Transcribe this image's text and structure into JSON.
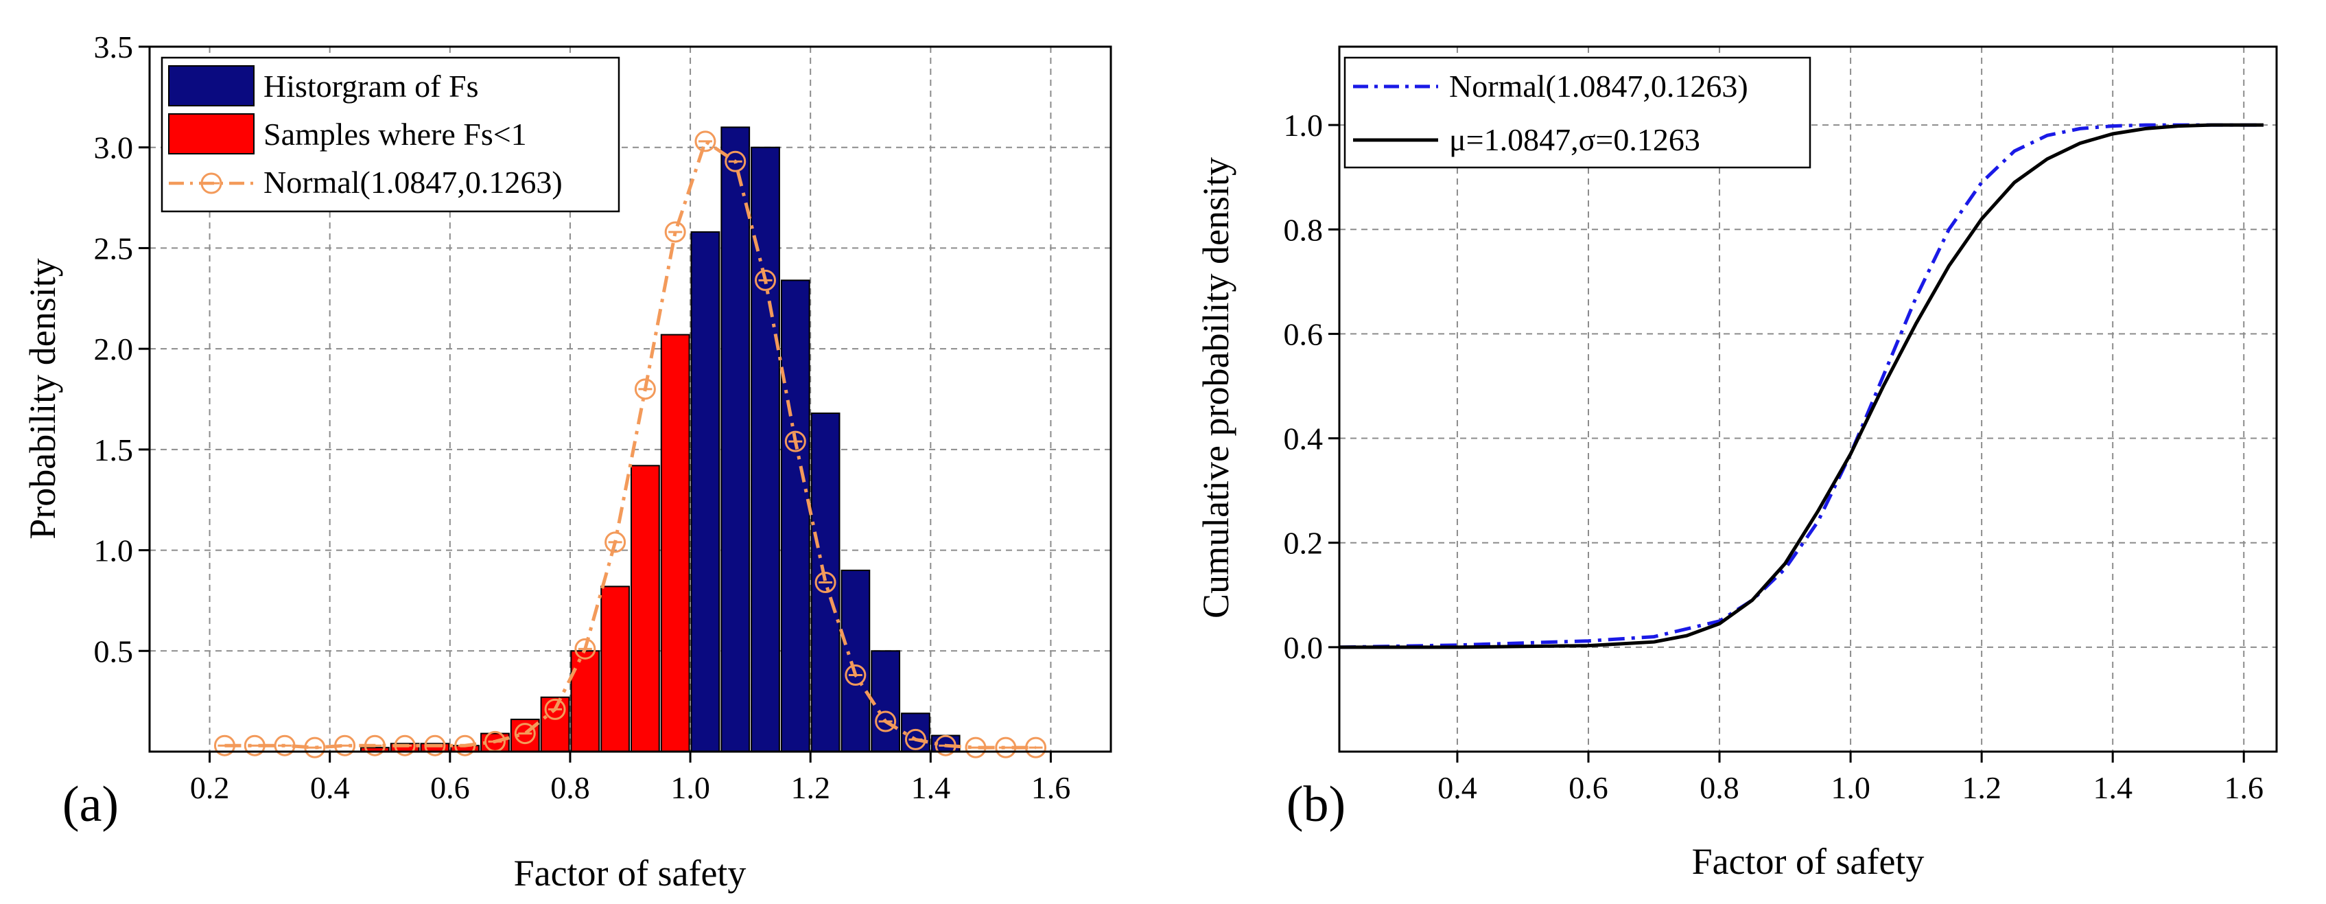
{
  "colors": {
    "hist": "#0a0a80",
    "fail": "#ff0000",
    "normal_a": "#f39a5a",
    "normal_b": "#1a1ae6",
    "mu_sigma": "#000000",
    "grid": "#8c8c8c"
  },
  "chart_data": [
    {
      "type": "bar",
      "panel_label": "(a)",
      "xlabel": "Factor of safety",
      "ylabel": "Probability density",
      "xlim": [
        0.1,
        1.7
      ],
      "ylim": [
        0,
        3.5
      ],
      "xticks": [
        "0.2",
        "0.4",
        "0.6",
        "0.8",
        "1.0",
        "1.2",
        "1.4",
        "1.6"
      ],
      "yticks": [
        "0.5",
        "1.0",
        "1.5",
        "2.0",
        "2.5",
        "3.0",
        "3.5"
      ],
      "bin_width": 0.05,
      "legend_position": "top-left",
      "series": [
        {
          "name": "Historgram of Fs",
          "type": "bar",
          "x": [
            1.025,
            1.075,
            1.125,
            1.175,
            1.225,
            1.275,
            1.325,
            1.375,
            1.425
          ],
          "values": [
            2.58,
            3.1,
            3.0,
            2.34,
            1.68,
            0.9,
            0.5,
            0.19,
            0.08
          ]
        },
        {
          "name": "Samples where Fs<1",
          "type": "bar",
          "x": [
            0.475,
            0.525,
            0.575,
            0.625,
            0.675,
            0.725,
            0.775,
            0.825,
            0.875,
            0.925,
            0.975
          ],
          "values": [
            0.02,
            0.04,
            0.04,
            0.03,
            0.09,
            0.16,
            0.27,
            0.5,
            0.82,
            1.42,
            2.07
          ]
        },
        {
          "name": "Normal(1.0847,0.1263)",
          "type": "line",
          "x": [
            0.225,
            0.275,
            0.325,
            0.375,
            0.425,
            0.475,
            0.525,
            0.575,
            0.625,
            0.675,
            0.725,
            0.775,
            0.825,
            0.875,
            0.925,
            0.975,
            1.025,
            1.075,
            1.125,
            1.175,
            1.225,
            1.275,
            1.325,
            1.375,
            1.425,
            1.475,
            1.525,
            1.575
          ],
          "values": [
            0.03,
            0.03,
            0.03,
            0.02,
            0.03,
            0.03,
            0.03,
            0.03,
            0.03,
            0.05,
            0.09,
            0.21,
            0.51,
            1.04,
            1.8,
            2.58,
            3.03,
            2.93,
            2.34,
            1.54,
            0.84,
            0.38,
            0.15,
            0.06,
            0.03,
            0.02,
            0.02,
            0.02
          ]
        }
      ]
    },
    {
      "type": "line",
      "panel_label": "(b)",
      "xlabel": "Factor of safety",
      "ylabel": "Cumulative probability density",
      "xlim": [
        0.22,
        1.65
      ],
      "ylim": [
        -0.2,
        1.15
      ],
      "xticks": [
        "0.4",
        "0.6",
        "0.8",
        "1.0",
        "1.2",
        "1.4",
        "1.6"
      ],
      "yticks": [
        "0.0",
        "0.2",
        "0.4",
        "0.6",
        "0.8",
        "1.0"
      ],
      "legend_position": "top-left",
      "series": [
        {
          "name": "Normal(1.0847,0.1263)",
          "style": "dash-dot",
          "x": [
            0.22,
            0.4,
            0.6,
            0.7,
            0.8,
            0.85,
            0.9,
            0.95,
            1.0,
            1.05,
            1.1,
            1.15,
            1.2,
            1.25,
            1.3,
            1.35,
            1.4,
            1.45,
            1.5,
            1.63
          ],
          "values": [
            0.0,
            0.004,
            0.012,
            0.02,
            0.05,
            0.09,
            0.15,
            0.24,
            0.37,
            0.52,
            0.67,
            0.8,
            0.89,
            0.95,
            0.98,
            0.993,
            0.998,
            1.0,
            1.0,
            1.0
          ]
        },
        {
          "name": "μ=1.0847,σ=0.1263",
          "style": "solid",
          "x": [
            0.22,
            0.4,
            0.6,
            0.7,
            0.75,
            0.8,
            0.85,
            0.9,
            0.95,
            1.0,
            1.05,
            1.1,
            1.15,
            1.2,
            1.25,
            1.3,
            1.35,
            1.4,
            1.45,
            1.5,
            1.55,
            1.63
          ],
          "values": [
            0.0,
            0.0,
            0.003,
            0.01,
            0.022,
            0.045,
            0.09,
            0.16,
            0.26,
            0.37,
            0.5,
            0.62,
            0.73,
            0.82,
            0.89,
            0.935,
            0.965,
            0.983,
            0.993,
            0.998,
            1.0,
            1.0
          ]
        }
      ]
    }
  ]
}
